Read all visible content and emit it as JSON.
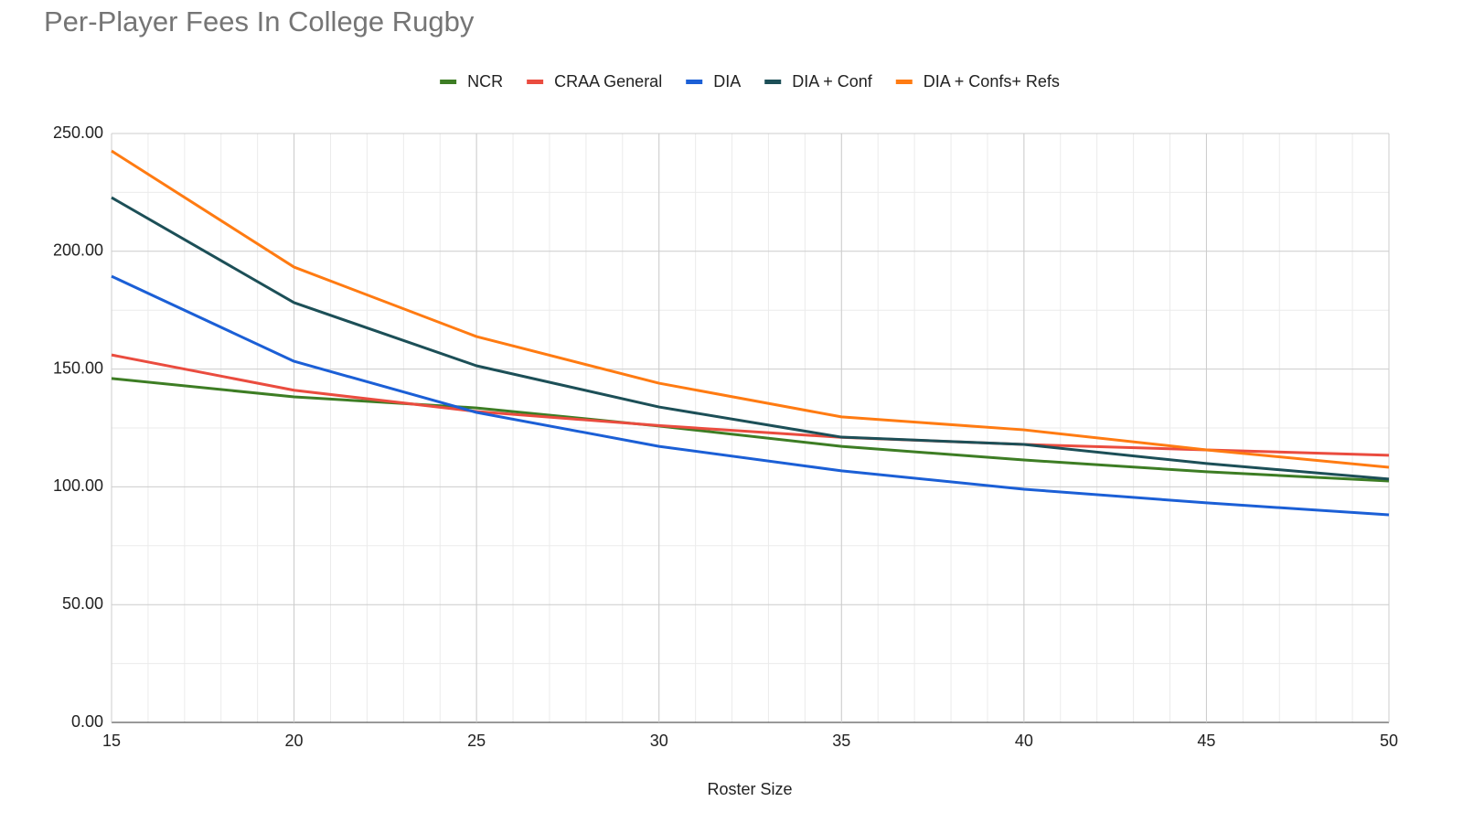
{
  "chart_data": {
    "type": "line",
    "title": "Per-Player Fees In College Rugby",
    "x_label": "Roster Size",
    "x": [
      15,
      20,
      25,
      30,
      35,
      40,
      45,
      50
    ],
    "series": [
      {
        "name": "NCR",
        "color": "#3d7d24",
        "values": [
          146,
          138.2,
          133.5,
          125.8,
          117.2,
          111.4,
          106.4,
          102.5
        ]
      },
      {
        "name": "CRAA General",
        "color": "#ea4c3f",
        "values": [
          156,
          141,
          132,
          126,
          121,
          118,
          115.7,
          113.4
        ]
      },
      {
        "name": "DIA",
        "color": "#1b5fd6",
        "values": [
          189.4,
          153.3,
          131.6,
          117.2,
          106.8,
          99,
          93.2,
          88.1
        ]
      },
      {
        "name": "DIA + Conf",
        "color": "#1c4f57",
        "values": [
          222.8,
          178.2,
          151.4,
          133.9,
          121.1,
          118,
          109.9,
          103.3
        ]
      },
      {
        "name": "DIA + Confs+ Refs",
        "color": "#ff7b12",
        "values": [
          242.6,
          193.3,
          163.8,
          144,
          129.7,
          124.2,
          115.7,
          108.3
        ]
      }
    ],
    "xlim": [
      15,
      50
    ],
    "xticks": [
      15,
      20,
      25,
      30,
      35,
      40,
      45,
      50
    ],
    "ylim": [
      0,
      250
    ],
    "yticks": [
      {
        "value": 0,
        "label": "0.00"
      },
      {
        "value": 50,
        "label": "50.00"
      },
      {
        "value": 100,
        "label": "100.00"
      },
      {
        "value": 150,
        "label": "150.00"
      },
      {
        "value": 200,
        "label": "200.00"
      },
      {
        "value": 250,
        "label": "250.00"
      }
    ],
    "grid": true,
    "legend": "top"
  }
}
